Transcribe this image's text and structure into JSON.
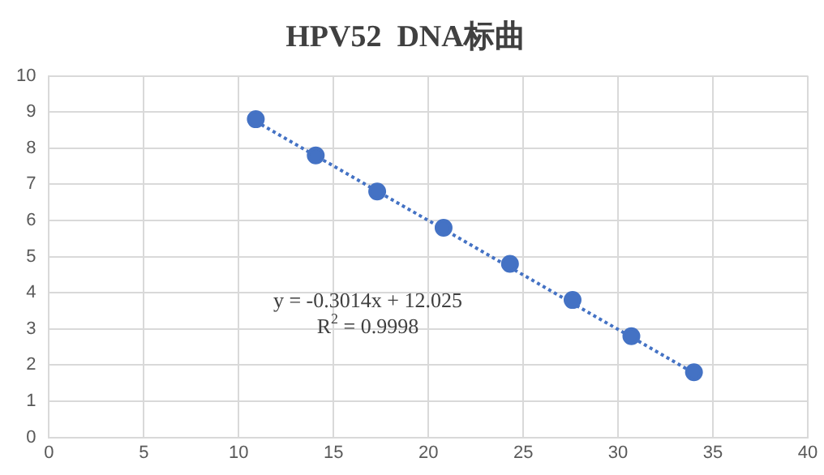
{
  "chart_data": {
    "type": "scatter",
    "title": "HPV52  DNA标曲",
    "x": [
      10.9,
      14.06,
      17.3,
      20.8,
      24.3,
      27.6,
      30.7,
      34.0
    ],
    "series": [
      {
        "color": "#4472c4",
        "marker": "circle",
        "values": [
          8.8,
          7.8,
          6.8,
          5.8,
          4.8,
          3.8,
          2.8,
          1.8
        ]
      },
      {
        "type": "line",
        "color": "#4472c4",
        "line_style": "dotted",
        "marker": "none",
        "x": [
          10.9,
          34.0
        ],
        "values": [
          8.74,
          1.78
        ]
      }
    ],
    "xlim": [
      0,
      40
    ],
    "xticks": [
      0,
      5,
      10,
      15,
      20,
      25,
      30,
      35,
      40
    ],
    "ylim": [
      0,
      10
    ],
    "yticks": [
      0,
      1,
      2,
      3,
      4,
      5,
      6,
      7,
      8,
      9,
      10
    ],
    "grid": true,
    "legend": false,
    "annotations": [
      "y = -0.3014x + 12.025",
      "R$^{2}$ = 0.9998"
    ]
  }
}
